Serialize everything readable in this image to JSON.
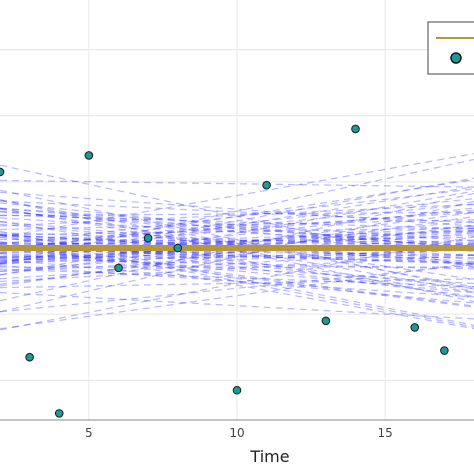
{
  "chart_data": {
    "type": "line",
    "title": "",
    "xlabel": "Time",
    "ylabel": "",
    "xlim": [
      2,
      18
    ],
    "ylim": [
      -5.2,
      7.5
    ],
    "x_ticks": [
      5,
      10,
      15
    ],
    "x_tick_labels": [
      "5",
      "10",
      "15"
    ],
    "grid": true,
    "legend": {
      "placement": "top-right",
      "entries": [
        {
          "name": "",
          "kind": "line",
          "color": "#b8963a"
        },
        {
          "name": "",
          "kind": "marker",
          "color": "#1a9a9a"
        }
      ]
    },
    "colors": {
      "samples": "#3333ff",
      "mean_line": "#b8963a",
      "points": "#1a9a9a",
      "point_stroke": "#1a1a1a",
      "grid": "#e6e6e6"
    },
    "mean_line": {
      "value": 0
    },
    "sample_lines": {
      "count": 90,
      "style": "dashed",
      "x_center": 8,
      "intercept_range": [
        -2.2,
        2.2
      ],
      "slope_range": [
        -0.28,
        0.28
      ]
    },
    "points": {
      "x": [
        2,
        3,
        4,
        5,
        6,
        7,
        8,
        10,
        11,
        13,
        14,
        16,
        17
      ],
      "y": [
        2.3,
        -3.3,
        -5.0,
        2.8,
        -0.6,
        0.3,
        0.0,
        -4.3,
        1.9,
        -2.2,
        3.6,
        -2.4,
        -3.1
      ]
    }
  }
}
